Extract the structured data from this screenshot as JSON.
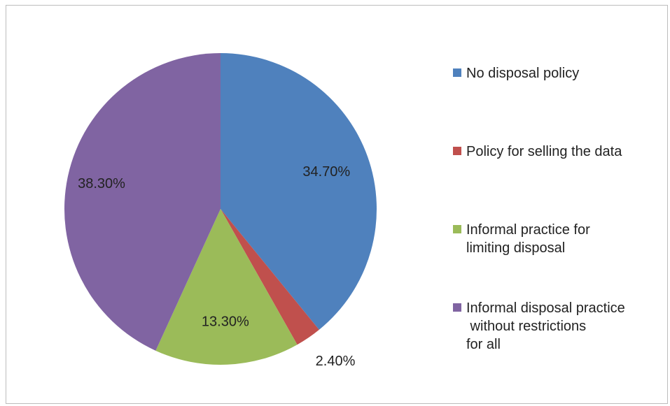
{
  "chart_data": {
    "type": "pie",
    "title": "",
    "slices": [
      {
        "label": "No disposal policy",
        "value": 34.7,
        "display": "34.70%",
        "color": "#4f81bd"
      },
      {
        "label": "Policy for selling the data",
        "value": 2.4,
        "display": "2.40%",
        "color": "#c0504d"
      },
      {
        "label": "Informal practice for\nlimiting disposal",
        "value": 13.3,
        "display": "13.30%",
        "color": "#9bbb59"
      },
      {
        "label": "Informal disposal practice\n without restrictions\nfor all",
        "value": 38.3,
        "display": "38.30%",
        "color": "#8064a2"
      }
    ],
    "legend_position": "right",
    "start_angle": "12 o'clock, clockwise"
  }
}
